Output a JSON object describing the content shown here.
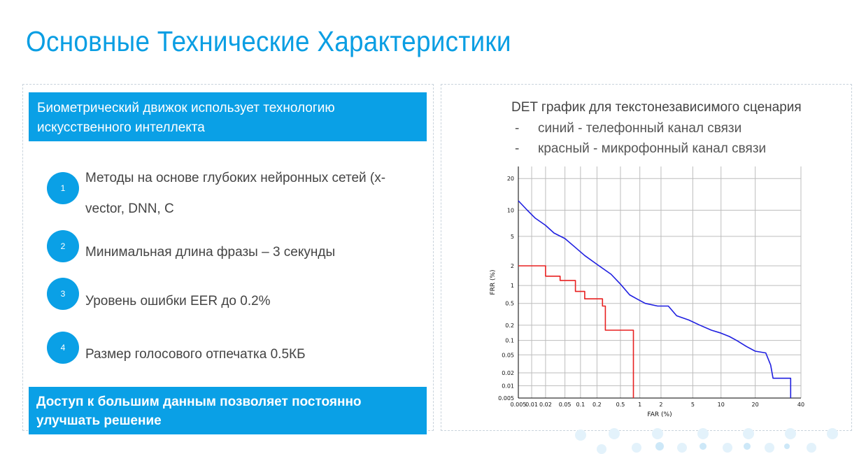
{
  "page": {
    "title": "Основные Технические Характеристики"
  },
  "left": {
    "banner_top": "Биометрический движок использует технологию искусственного интеллекта",
    "items": [
      {
        "number": "1",
        "text": "Методы на основе глубоких нейронных сетей (x-vector, DNN, C"
      },
      {
        "number": "2",
        "text": "Минимальная длина фразы – 3 секунды"
      },
      {
        "number": "3",
        "text": "Уровень ошибки EER до 0.2%"
      },
      {
        "number": "4",
        "text": "Размер голосового отпечатка 0.5КБ"
      }
    ],
    "banner_bottom": "Доступ к большим данным позволяет постоянно улучшать решение"
  },
  "right": {
    "det_title": "DET график для текстонезависимого сценария",
    "legend": [
      {
        "dash": "-",
        "text": "синий - телефонный канал связи"
      },
      {
        "dash": "-",
        "text": "красный - микрофонный канал связи"
      }
    ]
  },
  "colors": {
    "accent": "#0aa0e6",
    "title": "#0a9ee3",
    "blue_curve": "#1f1fe0",
    "red_curve": "#e82020"
  },
  "chart_data": {
    "type": "line",
    "title": "",
    "xlabel": "FAR (%)",
    "ylabel": "FRR (%)",
    "scale": "probit",
    "grid": true,
    "x_ticks": [
      0.005,
      0.01,
      0.02,
      0.05,
      0.1,
      0.2,
      0.5,
      1,
      2,
      5,
      10,
      20,
      40
    ],
    "x_tick_labels": [
      "0.005",
      "0.01",
      "0.02",
      "0.05",
      "0.1",
      "0.2",
      "0.5",
      "1",
      "2",
      "5",
      "10",
      "20",
      "40"
    ],
    "y_ticks": [
      0.005,
      0.01,
      0.02,
      0.05,
      0.1,
      0.2,
      0.5,
      1,
      2,
      5,
      10,
      20
    ],
    "y_tick_labels": [
      "0.005",
      "0.01",
      "0.02",
      "0.05",
      "0.1",
      "0.2",
      "0.5",
      "1",
      "2",
      "5",
      "10",
      "20"
    ],
    "xlim": [
      0.005,
      40
    ],
    "ylim": [
      0.005,
      25
    ],
    "series": [
      {
        "color": "blue",
        "points": [
          [
            0.005,
            12.5
          ],
          [
            0.008,
            10
          ],
          [
            0.012,
            8.2
          ],
          [
            0.02,
            6.8
          ],
          [
            0.03,
            5.5
          ],
          [
            0.05,
            4.7
          ],
          [
            0.08,
            3.6
          ],
          [
            0.12,
            2.8
          ],
          [
            0.2,
            2.1
          ],
          [
            0.35,
            1.5
          ],
          [
            0.5,
            1.05
          ],
          [
            0.7,
            0.7
          ],
          [
            0.9,
            0.6
          ],
          [
            1.2,
            0.5
          ],
          [
            1.8,
            0.45
          ],
          [
            2.5,
            0.45
          ],
          [
            3.2,
            0.3
          ],
          [
            4.5,
            0.25
          ],
          [
            6,
            0.2
          ],
          [
            8,
            0.16
          ],
          [
            10,
            0.14
          ],
          [
            12,
            0.12
          ],
          [
            14,
            0.1
          ],
          [
            17,
            0.075
          ],
          [
            20,
            0.06
          ],
          [
            24,
            0.055
          ],
          [
            26,
            0.03
          ],
          [
            27,
            0.015
          ],
          [
            35,
            0.015
          ],
          [
            35,
            0.005
          ]
        ]
      },
      {
        "color": "red",
        "points": [
          [
            0.005,
            2
          ],
          [
            0.02,
            2
          ],
          [
            0.02,
            1.4
          ],
          [
            0.04,
            1.4
          ],
          [
            0.04,
            1.2
          ],
          [
            0.08,
            1.2
          ],
          [
            0.08,
            0.8
          ],
          [
            0.12,
            0.8
          ],
          [
            0.12,
            0.6
          ],
          [
            0.25,
            0.6
          ],
          [
            0.25,
            0.45
          ],
          [
            0.28,
            0.45
          ],
          [
            0.28,
            0.16
          ],
          [
            0.8,
            0.16
          ],
          [
            0.8,
            0.005
          ]
        ]
      }
    ]
  }
}
